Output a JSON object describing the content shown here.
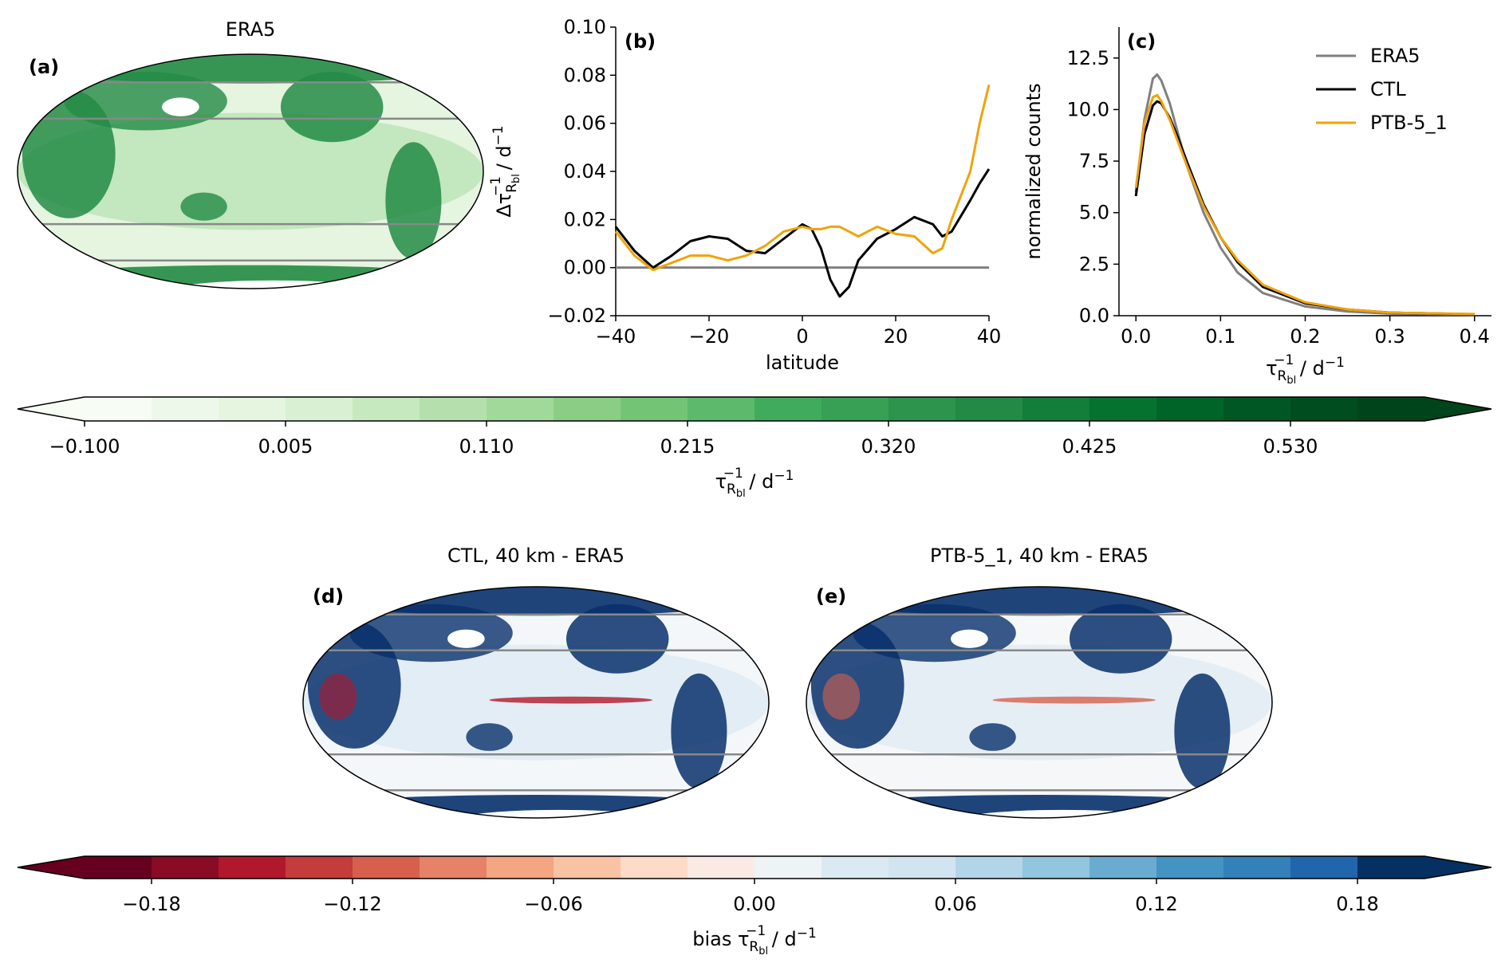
{
  "chart_data": [
    {
      "type": "map",
      "title": "ERA5",
      "panel_label": "(a)",
      "palette": [
        "#e5f5e0",
        "#a1d99b",
        "#238b45"
      ]
    },
    {
      "type": "line",
      "panel_label": "(b)",
      "xlabel": "latitude",
      "ylabel": [
        "Δτ",
        "R",
        "bl",
        "−1",
        " / d",
        "−1"
      ],
      "xlim": [
        -40,
        40
      ],
      "xticks": [
        {
          "value": -40,
          "label": "−40"
        },
        {
          "value": -20,
          "label": "−20"
        },
        0,
        20,
        40
      ],
      "ylim": [
        -0.02,
        0.1
      ],
      "yticks": [
        {
          "value": -0.02,
          "label": "−0.02"
        },
        {
          "value": 0,
          "label": "0.00"
        },
        {
          "value": 0.02,
          "label": "0.02"
        },
        {
          "value": 0.04,
          "label": "0.04"
        },
        {
          "value": 0.06,
          "label": "0.06"
        },
        {
          "value": 0.08,
          "label": "0.08"
        },
        {
          "value": 0.1,
          "label": "0.10"
        }
      ],
      "hlines": [
        {
          "value": 0,
          "color": "#808080"
        }
      ],
      "x": [
        -40,
        -36,
        -32,
        -28,
        -24,
        -20,
        -16,
        -12,
        -8,
        -4,
        0,
        2,
        4,
        6,
        8,
        10,
        12,
        16,
        20,
        24,
        28,
        30,
        32,
        36,
        38,
        40
      ],
      "series": [
        {
          "name": "CTL",
          "color": "#000000",
          "values": [
            0.017,
            0.007,
            0.0,
            0.005,
            0.011,
            0.013,
            0.012,
            0.007,
            0.006,
            0.012,
            0.018,
            0.016,
            0.008,
            -0.005,
            -0.012,
            -0.008,
            0.003,
            0.012,
            0.016,
            0.021,
            0.018,
            0.013,
            0.015,
            0.028,
            0.035,
            0.041
          ]
        },
        {
          "name": "PTB-5_1",
          "color": "#f0a30a",
          "values": [
            0.015,
            0.005,
            -0.001,
            0.002,
            0.005,
            0.005,
            0.003,
            0.005,
            0.009,
            0.015,
            0.017,
            0.016,
            0.016,
            0.017,
            0.017,
            0.015,
            0.013,
            0.017,
            0.014,
            0.013,
            0.006,
            0.008,
            0.02,
            0.04,
            0.06,
            0.076
          ]
        }
      ]
    },
    {
      "type": "line",
      "panel_label": "(c)",
      "ylabel": "normalized counts",
      "xlabel": [
        "τ",
        "R",
        "bl",
        "−1",
        " / d",
        "−1"
      ],
      "xlim": [
        -0.02,
        0.42
      ],
      "xticks": [
        {
          "value": 0,
          "label": "0.0"
        },
        0.1,
        0.2,
        0.3,
        0.4
      ],
      "ylim": [
        0,
        14
      ],
      "yticks": [
        {
          "value": 0,
          "label": "0.0"
        },
        2.5,
        {
          "value": 5,
          "label": "5.0"
        },
        7.5,
        {
          "value": 10,
          "label": "10.0"
        },
        12.5
      ],
      "legend": "upper right",
      "x": [
        0,
        0.01,
        0.02,
        0.025,
        0.03,
        0.04,
        0.05,
        0.06,
        0.08,
        0.1,
        0.12,
        0.15,
        0.2,
        0.25,
        0.3,
        0.4
      ],
      "series": [
        {
          "name": "ERA5",
          "color": "#808080",
          "values": [
            6.0,
            9.5,
            11.5,
            11.7,
            11.4,
            10.3,
            8.8,
            7.3,
            5.0,
            3.3,
            2.1,
            1.1,
            0.45,
            0.2,
            0.1,
            0.05
          ]
        },
        {
          "name": "CTL",
          "color": "#000000",
          "values": [
            5.8,
            8.8,
            10.2,
            10.4,
            10.3,
            9.6,
            8.6,
            7.5,
            5.4,
            3.8,
            2.6,
            1.4,
            0.6,
            0.3,
            0.15,
            0.07
          ]
        },
        {
          "name": "PTB-5_1",
          "color": "#f0a30a",
          "values": [
            6.2,
            9.3,
            10.6,
            10.7,
            10.4,
            9.5,
            8.4,
            7.3,
            5.3,
            3.8,
            2.7,
            1.5,
            0.65,
            0.3,
            0.15,
            0.08
          ]
        }
      ]
    },
    {
      "type": "colorbar",
      "label": [
        "τ",
        "R",
        "bl",
        "−1",
        " / d",
        "−1"
      ],
      "xlim": [
        -0.1,
        0.6
      ],
      "xticks": [
        {
          "value": -0.1,
          "label": "−0.100"
        },
        {
          "value": 0.005,
          "label": "0.005"
        },
        {
          "value": 0.11,
          "label": "0.110"
        },
        {
          "value": 0.215,
          "label": "0.215"
        },
        {
          "value": 0.32,
          "label": "0.320"
        },
        {
          "value": 0.425,
          "label": "0.425"
        },
        {
          "value": 0.53,
          "label": "0.530"
        }
      ],
      "colors": [
        "#f7fcf5",
        "#eef8ea",
        "#e5f5e0",
        "#d9f0d3",
        "#c7e9c0",
        "#b5e0ad",
        "#a1d99b",
        "#8ccd86",
        "#74c476",
        "#5db96b",
        "#41ab5d",
        "#37a055",
        "#2c944c",
        "#228a44",
        "#137e3a",
        "#067230",
        "#006428",
        "#005723",
        "#004d20",
        "#00441b"
      ]
    },
    {
      "type": "map",
      "title": "CTL, 40 km - ERA5",
      "panel_label": "(d)",
      "palette": [
        "#f4f7fa",
        "#cfe3ef",
        "#08306b",
        "#b2182b"
      ]
    },
    {
      "type": "map",
      "title": "PTB-5_1, 40 km - ERA5",
      "panel_label": "(e)",
      "palette": [
        "#f6f7f8",
        "#d6e6f1",
        "#08306b",
        "#d6604d"
      ]
    },
    {
      "type": "colorbar",
      "label": [
        "bias τ",
        "R",
        "bl",
        "−1",
        " / d",
        "−1"
      ],
      "xlim": [
        -0.2,
        0.2
      ],
      "xticks": [
        {
          "value": -0.18,
          "label": "−0.18"
        },
        {
          "value": -0.12,
          "label": "−0.12"
        },
        {
          "value": -0.06,
          "label": "−0.06"
        },
        {
          "value": 0,
          "label": "0.00"
        },
        0.06,
        0.12,
        0.18
      ],
      "colors": [
        "#67001f",
        "#8a0b25",
        "#b2182b",
        "#c43c3c",
        "#d6604d",
        "#e58267",
        "#f4a582",
        "#f8c2a4",
        "#fddbc7",
        "#f9ebe4",
        "#eef3f6",
        "#dbeaf2",
        "#d1e5f0",
        "#b3d5e8",
        "#92c5de",
        "#6aacd0",
        "#4393c3",
        "#3480b9",
        "#2166ac",
        "#053061"
      ]
    }
  ]
}
